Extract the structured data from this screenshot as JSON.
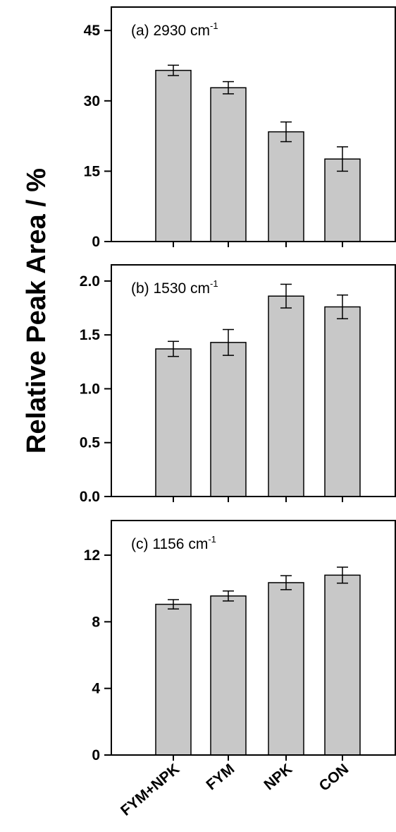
{
  "ylabel": "Relative Peak Area / %",
  "categories": [
    "FYM+NPK",
    "FYM",
    "NPK",
    "CON"
  ],
  "colors": {
    "bar": "#c8c8c8",
    "stroke": "#000000"
  },
  "chart_data": [
    {
      "type": "bar",
      "panel_label": "(a) 2930 cm",
      "panel_label_sup": "-1",
      "categories": [
        "FYM+NPK",
        "FYM",
        "NPK",
        "CON"
      ],
      "values": [
        36.5,
        32.8,
        23.4,
        17.6
      ],
      "errors": [
        1.1,
        1.3,
        2.1,
        2.6
      ],
      "ylim": [
        0,
        50
      ],
      "yticks": [
        0,
        15,
        30,
        45
      ],
      "ytick_labels": [
        "0",
        "15",
        "30",
        "45"
      ],
      "grid": false
    },
    {
      "type": "bar",
      "panel_label": "(b) 1530 cm",
      "panel_label_sup": "-1",
      "categories": [
        "FYM+NPK",
        "FYM",
        "NPK",
        "CON"
      ],
      "values": [
        1.37,
        1.43,
        1.86,
        1.76
      ],
      "errors": [
        0.07,
        0.12,
        0.11,
        0.11
      ],
      "ylim": [
        0,
        2.15
      ],
      "yticks": [
        0,
        0.5,
        1.0,
        1.5,
        2.0
      ],
      "ytick_labels": [
        "0.0",
        "0.5",
        "1.0",
        "1.5",
        "2.0"
      ],
      "grid": false
    },
    {
      "type": "bar",
      "panel_label": "(c) 1156 cm",
      "panel_label_sup": "-1",
      "categories": [
        "FYM+NPK",
        "FYM",
        "NPK",
        "CON"
      ],
      "values": [
        9.05,
        9.55,
        10.35,
        10.8
      ],
      "errors": [
        0.28,
        0.3,
        0.42,
        0.48
      ],
      "ylim": [
        0,
        14.08
      ],
      "yticks": [
        0,
        4,
        8,
        12
      ],
      "ytick_labels": [
        "0",
        "4",
        "8",
        "12"
      ],
      "grid": false
    }
  ]
}
